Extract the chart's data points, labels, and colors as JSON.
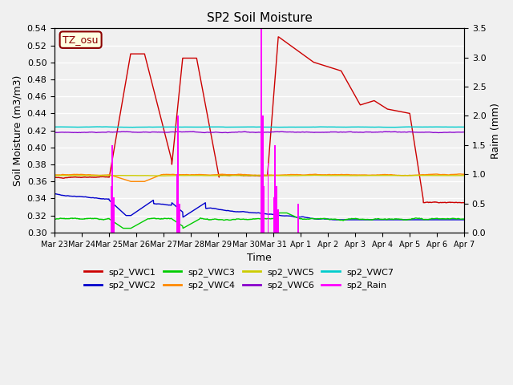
{
  "title": "SP2 Soil Moisture",
  "xlabel": "Time",
  "ylabel_left": "Soil Moisture (m3/m3)",
  "ylabel_right": "Raim (mm)",
  "ylim_left": [
    0.3,
    0.54
  ],
  "ylim_right": [
    0.0,
    3.5
  ],
  "timezone_label": "TZ_osu",
  "series_colors": {
    "sp2_VWC1": "#cc0000",
    "sp2_VWC2": "#0000cc",
    "sp2_VWC3": "#00cc00",
    "sp2_VWC4": "#ff8800",
    "sp2_VWC5": "#cccc00",
    "sp2_VWC6": "#8800cc",
    "sp2_VWC7": "#00cccc",
    "sp2_Rain": "#ff00ff"
  },
  "tick_labels": [
    "Mar 23",
    "Mar 24",
    "Mar 25",
    "Mar 26",
    "Mar 27",
    "Mar 28",
    "Mar 29",
    "Mar 30",
    "Mar 31",
    "Apr 1",
    "Apr 2",
    "Apr 3",
    "Apr 4",
    "Apr 5",
    "Apr 6",
    "Apr 7"
  ],
  "plot_bg_color": "#f0f0f0"
}
